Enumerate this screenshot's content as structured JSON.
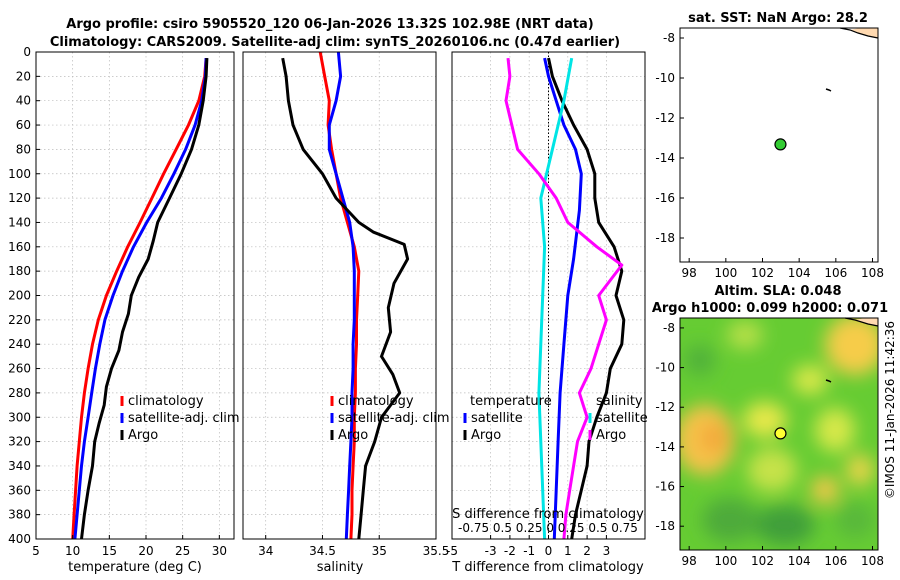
{
  "chart_data": {
    "type": "line",
    "title_line1": "Argo profile: csiro 5905520_120 06-Jan-2026 13.32S 102.98E (NRT data)",
    "title_line2": "Climatology: CARS2009. Satellite-adj clim: synTS_20260106.nc (0.47d earlier)",
    "ylim": [
      0,
      400
    ],
    "yticks": [
      0,
      20,
      40,
      60,
      80,
      100,
      120,
      140,
      160,
      180,
      200,
      220,
      240,
      260,
      280,
      300,
      320,
      340,
      360,
      380,
      400
    ],
    "colors": {
      "climatology": "#ff0000",
      "satellite": "#0000ff",
      "argo": "#000000",
      "salinity_diff": "#ff00ff",
      "salinity_sat": "#00e5e5"
    },
    "panels": [
      {
        "id": "temperature",
        "xlabel": "temperature (deg C)",
        "xlim": [
          5,
          32
        ],
        "xticks": [
          5,
          10,
          15,
          20,
          25,
          30
        ],
        "legend": [
          "climatology",
          "satellite-adj. clim",
          "Argo"
        ],
        "series": [
          {
            "name": "climatology",
            "color": "#ff0000",
            "points": [
              [
                28.2,
                5
              ],
              [
                28.0,
                20
              ],
              [
                27.2,
                40
              ],
              [
                25.8,
                60
              ],
              [
                24.1,
                80
              ],
              [
                22.4,
                100
              ],
              [
                20.8,
                120
              ],
              [
                19.2,
                140
              ],
              [
                17.5,
                160
              ],
              [
                16.0,
                180
              ],
              [
                14.6,
                200
              ],
              [
                13.5,
                220
              ],
              [
                12.7,
                240
              ],
              [
                12.1,
                260
              ],
              [
                11.6,
                280
              ],
              [
                11.2,
                300
              ],
              [
                10.9,
                320
              ],
              [
                10.6,
                340
              ],
              [
                10.4,
                360
              ],
              [
                10.2,
                380
              ],
              [
                10.0,
                400
              ]
            ]
          },
          {
            "name": "satellite-adj. clim",
            "color": "#0000ff",
            "points": [
              [
                28.2,
                5
              ],
              [
                28.1,
                20
              ],
              [
                27.6,
                40
              ],
              [
                26.7,
                60
              ],
              [
                25.4,
                80
              ],
              [
                23.8,
                100
              ],
              [
                22.1,
                120
              ],
              [
                20.1,
                140
              ],
              [
                18.3,
                160
              ],
              [
                16.8,
                180
              ],
              [
                15.5,
                200
              ],
              [
                14.4,
                220
              ],
              [
                13.7,
                240
              ],
              [
                13.1,
                260
              ],
              [
                12.6,
                280
              ],
              [
                12.1,
                300
              ],
              [
                11.6,
                320
              ],
              [
                11.2,
                340
              ],
              [
                10.9,
                360
              ],
              [
                10.6,
                380
              ],
              [
                10.3,
                400
              ]
            ]
          },
          {
            "name": "Argo",
            "color": "#000000",
            "points": [
              [
                28.3,
                5
              ],
              [
                28.2,
                20
              ],
              [
                27.8,
                40
              ],
              [
                27.2,
                60
              ],
              [
                26.2,
                80
              ],
              [
                24.8,
                100
              ],
              [
                23.2,
                120
              ],
              [
                21.6,
                140
              ],
              [
                21.0,
                155
              ],
              [
                20.3,
                170
              ],
              [
                19.0,
                185
              ],
              [
                18.0,
                200
              ],
              [
                17.6,
                215
              ],
              [
                16.8,
                230
              ],
              [
                16.3,
                245
              ],
              [
                15.3,
                260
              ],
              [
                14.6,
                275
              ],
              [
                14.3,
                290
              ],
              [
                13.6,
                305
              ],
              [
                13.0,
                320
              ],
              [
                12.7,
                340
              ],
              [
                12.1,
                360
              ],
              [
                11.6,
                380
              ],
              [
                11.2,
                400
              ]
            ]
          }
        ]
      },
      {
        "id": "salinity",
        "xlabel": "salinity",
        "xlim": [
          33.8,
          35.5
        ],
        "xticks": [
          34,
          34.5,
          35,
          35.5
        ],
        "legend": [
          "climatology",
          "satellite-adj. clim",
          "Argo"
        ],
        "series": [
          {
            "name": "climatology",
            "color": "#ff0000",
            "points": [
              [
                34.48,
                0
              ],
              [
                34.52,
                20
              ],
              [
                34.56,
                40
              ],
              [
                34.55,
                60
              ],
              [
                34.58,
                80
              ],
              [
                34.62,
                100
              ],
              [
                34.66,
                120
              ],
              [
                34.72,
                140
              ],
              [
                34.78,
                160
              ],
              [
                34.82,
                180
              ],
              [
                34.81,
                200
              ],
              [
                34.8,
                220
              ],
              [
                34.8,
                240
              ],
              [
                34.79,
                260
              ],
              [
                34.79,
                280
              ],
              [
                34.78,
                300
              ],
              [
                34.78,
                320
              ],
              [
                34.77,
                340
              ],
              [
                34.76,
                360
              ],
              [
                34.76,
                380
              ],
              [
                34.75,
                400
              ]
            ]
          },
          {
            "name": "satellite-adj. clim",
            "color": "#0000ff",
            "points": [
              [
                34.64,
                0
              ],
              [
                34.66,
                20
              ],
              [
                34.62,
                40
              ],
              [
                34.56,
                60
              ],
              [
                34.56,
                80
              ],
              [
                34.62,
                100
              ],
              [
                34.68,
                120
              ],
              [
                34.74,
                140
              ],
              [
                34.77,
                160
              ],
              [
                34.78,
                180
              ],
              [
                34.78,
                200
              ],
              [
                34.78,
                220
              ],
              [
                34.77,
                240
              ],
              [
                34.77,
                260
              ],
              [
                34.76,
                280
              ],
              [
                34.76,
                300
              ],
              [
                34.75,
                320
              ],
              [
                34.74,
                340
              ],
              [
                34.73,
                360
              ],
              [
                34.72,
                380
              ],
              [
                34.71,
                400
              ]
            ]
          },
          {
            "name": "Argo",
            "color": "#000000",
            "points": [
              [
                34.15,
                5
              ],
              [
                34.18,
                20
              ],
              [
                34.2,
                40
              ],
              [
                34.24,
                60
              ],
              [
                34.33,
                80
              ],
              [
                34.5,
                100
              ],
              [
                34.62,
                120
              ],
              [
                34.82,
                140
              ],
              [
                34.95,
                148
              ],
              [
                35.22,
                158
              ],
              [
                35.25,
                170
              ],
              [
                35.13,
                190
              ],
              [
                35.08,
                210
              ],
              [
                35.1,
                230
              ],
              [
                35.02,
                250
              ],
              [
                35.12,
                265
              ],
              [
                35.18,
                280
              ],
              [
                35.02,
                300
              ],
              [
                34.96,
                320
              ],
              [
                34.88,
                340
              ],
              [
                34.86,
                360
              ],
              [
                34.84,
                380
              ],
              [
                34.82,
                400
              ]
            ]
          }
        ]
      },
      {
        "id": "difference",
        "xlabel": "T difference from climatology",
        "xlabel_top": "S difference from climatology",
        "s_axis_labels": "-0.75 0.5 0.25  0  0.25 0.5 0.75",
        "xlim": [
          -5,
          5
        ],
        "xticks": [
          -5,
          -3,
          -2,
          -1,
          0,
          1,
          2,
          3
        ],
        "legend_left": {
          "header": "temperature",
          "items": [
            "satellite",
            "Argo"
          ]
        },
        "legend_right": {
          "header": "salinity",
          "items": [
            "satellite",
            "Argo"
          ]
        },
        "series": [
          {
            "name": "T satellite",
            "color": "#0000ff",
            "points": [
              [
                -0.2,
                5
              ],
              [
                0.0,
                20
              ],
              [
                0.4,
                40
              ],
              [
                0.8,
                60
              ],
              [
                1.4,
                80
              ],
              [
                1.7,
                100
              ],
              [
                1.6,
                130
              ],
              [
                1.3,
                170
              ],
              [
                1.0,
                200
              ],
              [
                0.8,
                240
              ],
              [
                0.6,
                280
              ],
              [
                0.5,
                320
              ],
              [
                0.4,
                360
              ],
              [
                0.3,
                400
              ]
            ]
          },
          {
            "name": "T Argo",
            "color": "#000000",
            "points": [
              [
                0.0,
                5
              ],
              [
                0.2,
                20
              ],
              [
                0.7,
                40
              ],
              [
                1.3,
                60
              ],
              [
                2.0,
                80
              ],
              [
                2.4,
                100
              ],
              [
                2.4,
                120
              ],
              [
                2.6,
                140
              ],
              [
                3.4,
                160
              ],
              [
                3.8,
                180
              ],
              [
                3.5,
                200
              ],
              [
                3.9,
                220
              ],
              [
                3.8,
                240
              ],
              [
                3.2,
                260
              ],
              [
                3.0,
                280
              ],
              [
                2.5,
                300
              ],
              [
                2.1,
                320
              ],
              [
                2.0,
                340
              ],
              [
                1.7,
                360
              ],
              [
                1.4,
                380
              ],
              [
                1.2,
                400
              ]
            ]
          },
          {
            "name": "S satellite",
            "color": "#00e5e5",
            "points": [
              [
                1.2,
                5
              ],
              [
                0.8,
                40
              ],
              [
                0.2,
                80
              ],
              [
                -0.4,
                120
              ],
              [
                -0.2,
                160
              ],
              [
                -0.3,
                200
              ],
              [
                -0.4,
                240
              ],
              [
                -0.5,
                280
              ],
              [
                -0.4,
                320
              ],
              [
                -0.3,
                360
              ],
              [
                -0.2,
                400
              ]
            ]
          },
          {
            "name": "S Argo",
            "color": "#ff00ff",
            "points": [
              [
                -2.1,
                5
              ],
              [
                -2.0,
                20
              ],
              [
                -2.2,
                40
              ],
              [
                -1.9,
                60
              ],
              [
                -1.6,
                80
              ],
              [
                -0.5,
                100
              ],
              [
                0.4,
                120
              ],
              [
                1.0,
                140
              ],
              [
                2.5,
                160
              ],
              [
                3.8,
                175
              ],
              [
                2.6,
                200
              ],
              [
                3.0,
                220
              ],
              [
                2.6,
                240
              ],
              [
                2.2,
                260
              ],
              [
                1.6,
                280
              ],
              [
                2.0,
                300
              ],
              [
                1.5,
                320
              ],
              [
                1.3,
                340
              ],
              [
                1.1,
                360
              ],
              [
                0.9,
                380
              ],
              [
                0.8,
                400
              ]
            ]
          }
        ]
      }
    ],
    "maps": [
      {
        "id": "sst-map",
        "title": "sat. SST: NaN Argo: 28.2",
        "xlim": [
          97.5,
          108.3
        ],
        "ylim": [
          -19.2,
          -7.5
        ],
        "xticks": [
          98,
          100,
          102,
          104,
          106,
          108
        ],
        "yticks": [
          -8,
          -10,
          -12,
          -14,
          -16,
          -18
        ],
        "marker": {
          "lon": 102.98,
          "lat": -13.32,
          "color": "#33cc33"
        }
      },
      {
        "id": "sla-map",
        "title_line1": "Altim. SLA: 0.048",
        "title_line2": "Argo h1000: 0.099 h2000: 0.071",
        "xlim": [
          97.5,
          108.3
        ],
        "ylim": [
          -19.2,
          -7.5
        ],
        "xticks": [
          98,
          100,
          102,
          104,
          106,
          108
        ],
        "yticks": [
          -8,
          -10,
          -12,
          -14,
          -16,
          -18
        ],
        "marker": {
          "lon": 102.98,
          "lat": -13.32,
          "color": "#ffff33"
        }
      }
    ],
    "credit": "©IMOS 11-Jan-2026 11:42:36"
  }
}
